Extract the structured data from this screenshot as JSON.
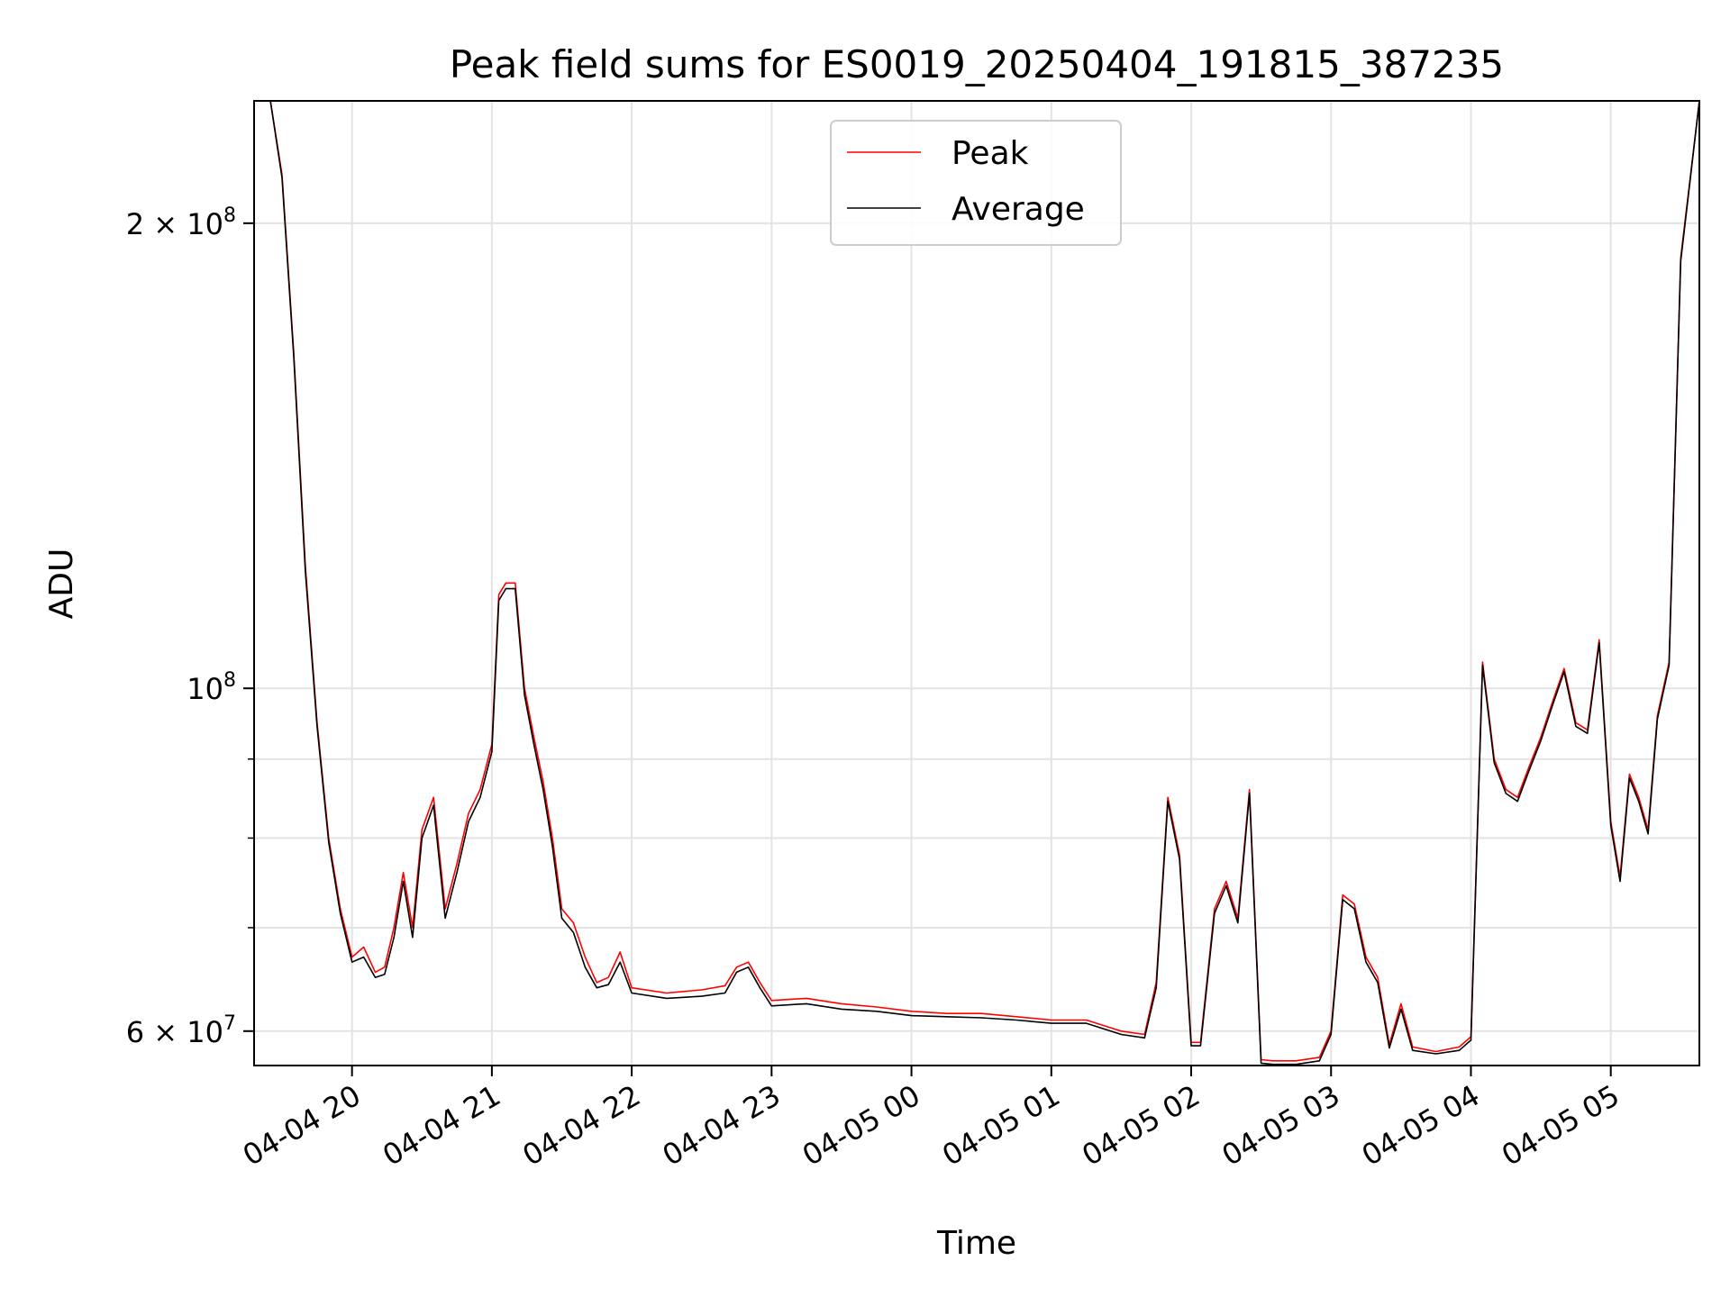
{
  "chart_data": {
    "type": "line",
    "title": "Peak field sums for ES0019_20250404_191815_387235",
    "xlabel": "Time",
    "ylabel": "ADU",
    "yscale": "log",
    "grid": true,
    "legend_position": "upper center",
    "xlim": [
      "2025-04-04 19:18",
      "2025-04-05 05:38"
    ],
    "ylim": [
      57000000,
      240000000
    ],
    "x_ticks": [
      {
        "value": "2025-04-04 20:00",
        "label": "04-04 20"
      },
      {
        "value": "2025-04-04 21:00",
        "label": "04-04 21"
      },
      {
        "value": "2025-04-04 22:00",
        "label": "04-04 22"
      },
      {
        "value": "2025-04-04 23:00",
        "label": "04-04 23"
      },
      {
        "value": "2025-04-05 00:00",
        "label": "04-05 00"
      },
      {
        "value": "2025-04-05 01:00",
        "label": "04-05 01"
      },
      {
        "value": "2025-04-05 02:00",
        "label": "04-05 02"
      },
      {
        "value": "2025-04-05 03:00",
        "label": "04-05 03"
      },
      {
        "value": "2025-04-05 04:00",
        "label": "04-05 04"
      },
      {
        "value": "2025-04-05 05:00",
        "label": "04-05 05"
      }
    ],
    "y_ticks": [
      {
        "value": 60000000,
        "base": "6 × 10",
        "exp": "7"
      },
      {
        "value": 100000000,
        "base": "10",
        "exp": "8"
      },
      {
        "value": 200000000,
        "base": "2 × 10",
        "exp": "8"
      }
    ],
    "y_minor_ticks": [
      70000000,
      80000000,
      90000000
    ],
    "series": [
      {
        "name": "Peak",
        "color": "#ff0000",
        "x": [
          "2025-04-04 19:18",
          "2025-04-04 19:25",
          "2025-04-04 19:30",
          "2025-04-04 19:35",
          "2025-04-04 19:40",
          "2025-04-04 19:45",
          "2025-04-04 19:50",
          "2025-04-04 19:55",
          "2025-04-04 20:00",
          "2025-04-04 20:05",
          "2025-04-04 20:10",
          "2025-04-04 20:14",
          "2025-04-04 20:18",
          "2025-04-04 20:22",
          "2025-04-04 20:26",
          "2025-04-04 20:30",
          "2025-04-04 20:35",
          "2025-04-04 20:40",
          "2025-04-04 20:45",
          "2025-04-04 20:50",
          "2025-04-04 20:55",
          "2025-04-04 21:00",
          "2025-04-04 21:03",
          "2025-04-04 21:06",
          "2025-04-04 21:10",
          "2025-04-04 21:14",
          "2025-04-04 21:18",
          "2025-04-04 21:22",
          "2025-04-04 21:26",
          "2025-04-04 21:30",
          "2025-04-04 21:35",
          "2025-04-04 21:40",
          "2025-04-04 21:45",
          "2025-04-04 21:50",
          "2025-04-04 21:55",
          "2025-04-04 22:00",
          "2025-04-04 22:15",
          "2025-04-04 22:30",
          "2025-04-04 22:40",
          "2025-04-04 22:45",
          "2025-04-04 22:50",
          "2025-04-04 22:55",
          "2025-04-04 23:00",
          "2025-04-04 23:15",
          "2025-04-04 23:30",
          "2025-04-04 23:45",
          "2025-04-05 00:00",
          "2025-04-05 00:15",
          "2025-04-05 00:30",
          "2025-04-05 00:45",
          "2025-04-05 01:00",
          "2025-04-05 01:15",
          "2025-04-05 01:30",
          "2025-04-05 01:40",
          "2025-04-05 01:45",
          "2025-04-05 01:50",
          "2025-04-05 01:55",
          "2025-04-05 02:00",
          "2025-04-05 02:04",
          "2025-04-05 02:10",
          "2025-04-05 02:15",
          "2025-04-05 02:20",
          "2025-04-05 02:25",
          "2025-04-05 02:30",
          "2025-04-05 02:35",
          "2025-04-05 02:45",
          "2025-04-05 02:55",
          "2025-04-05 03:00",
          "2025-04-05 03:05",
          "2025-04-05 03:10",
          "2025-04-05 03:15",
          "2025-04-05 03:20",
          "2025-04-05 03:25",
          "2025-04-05 03:30",
          "2025-04-05 03:35",
          "2025-04-05 03:45",
          "2025-04-05 03:55",
          "2025-04-05 04:00",
          "2025-04-05 04:05",
          "2025-04-05 04:10",
          "2025-04-05 04:15",
          "2025-04-05 04:20",
          "2025-04-05 04:25",
          "2025-04-05 04:30",
          "2025-04-05 04:35",
          "2025-04-05 04:40",
          "2025-04-05 04:45",
          "2025-04-05 04:50",
          "2025-04-05 04:55",
          "2025-04-05 05:00",
          "2025-04-05 05:04",
          "2025-04-05 05:08",
          "2025-04-05 05:12",
          "2025-04-05 05:16",
          "2025-04-05 05:20",
          "2025-04-05 05:25",
          "2025-04-05 05:30",
          "2025-04-05 05:38"
        ],
        "values": [
          240000000,
          240000000,
          215000000,
          165000000,
          120000000,
          95000000,
          80000000,
          72000000,
          67000000,
          68000000,
          65500000,
          66000000,
          70000000,
          76000000,
          70000000,
          81000000,
          85000000,
          72000000,
          77000000,
          83000000,
          86000000,
          92000000,
          115000000,
          117000000,
          117000000,
          100000000,
          93000000,
          87000000,
          80000000,
          72000000,
          70500000,
          67000000,
          64500000,
          65000000,
          67500000,
          64000000,
          63500000,
          63800000,
          64200000,
          66000000,
          66500000,
          64500000,
          62800000,
          63000000,
          62500000,
          62200000,
          61800000,
          61600000,
          61600000,
          61300000,
          61000000,
          61000000,
          60000000,
          59700000,
          64500000,
          85000000,
          78000000,
          59000000,
          59000000,
          72000000,
          75000000,
          71000000,
          86000000,
          57500000,
          57400000,
          57400000,
          57700000,
          60000000,
          73500000,
          72500000,
          67000000,
          65000000,
          58800000,
          62500000,
          58600000,
          58200000,
          58600000,
          59500000,
          104000000,
          90000000,
          86000000,
          85000000,
          89000000,
          93000000,
          98000000,
          103000000,
          95000000,
          94000000,
          107500000,
          82000000,
          75500000,
          88000000,
          85000000,
          81000000,
          96000000,
          104000000,
          190000000,
          240000000
        ]
      },
      {
        "name": "Average",
        "color": "#000000",
        "x": [
          "2025-04-04 19:18",
          "2025-04-04 19:25",
          "2025-04-04 19:30",
          "2025-04-04 19:35",
          "2025-04-04 19:40",
          "2025-04-04 19:45",
          "2025-04-04 19:50",
          "2025-04-04 19:55",
          "2025-04-04 20:00",
          "2025-04-04 20:05",
          "2025-04-04 20:10",
          "2025-04-04 20:14",
          "2025-04-04 20:18",
          "2025-04-04 20:22",
          "2025-04-04 20:26",
          "2025-04-04 20:30",
          "2025-04-04 20:35",
          "2025-04-04 20:40",
          "2025-04-04 20:45",
          "2025-04-04 20:50",
          "2025-04-04 20:55",
          "2025-04-04 21:00",
          "2025-04-04 21:03",
          "2025-04-04 21:06",
          "2025-04-04 21:10",
          "2025-04-04 21:14",
          "2025-04-04 21:18",
          "2025-04-04 21:22",
          "2025-04-04 21:26",
          "2025-04-04 21:30",
          "2025-04-04 21:35",
          "2025-04-04 21:40",
          "2025-04-04 21:45",
          "2025-04-04 21:50",
          "2025-04-04 21:55",
          "2025-04-04 22:00",
          "2025-04-04 22:15",
          "2025-04-04 22:30",
          "2025-04-04 22:40",
          "2025-04-04 22:45",
          "2025-04-04 22:50",
          "2025-04-04 22:55",
          "2025-04-04 23:00",
          "2025-04-04 23:15",
          "2025-04-04 23:30",
          "2025-04-04 23:45",
          "2025-04-05 00:00",
          "2025-04-05 00:15",
          "2025-04-05 00:30",
          "2025-04-05 00:45",
          "2025-04-05 01:00",
          "2025-04-05 01:15",
          "2025-04-05 01:30",
          "2025-04-05 01:40",
          "2025-04-05 01:45",
          "2025-04-05 01:50",
          "2025-04-05 01:55",
          "2025-04-05 02:00",
          "2025-04-05 02:04",
          "2025-04-05 02:10",
          "2025-04-05 02:15",
          "2025-04-05 02:20",
          "2025-04-05 02:25",
          "2025-04-05 02:30",
          "2025-04-05 02:35",
          "2025-04-05 02:45",
          "2025-04-05 02:55",
          "2025-04-05 03:00",
          "2025-04-05 03:05",
          "2025-04-05 03:10",
          "2025-04-05 03:15",
          "2025-04-05 03:20",
          "2025-04-05 03:25",
          "2025-04-05 03:30",
          "2025-04-05 03:35",
          "2025-04-05 03:45",
          "2025-04-05 03:55",
          "2025-04-05 04:00",
          "2025-04-05 04:05",
          "2025-04-05 04:10",
          "2025-04-05 04:15",
          "2025-04-05 04:20",
          "2025-04-05 04:25",
          "2025-04-05 04:30",
          "2025-04-05 04:35",
          "2025-04-05 04:40",
          "2025-04-05 04:45",
          "2025-04-05 04:50",
          "2025-04-05 04:55",
          "2025-04-05 05:00",
          "2025-04-05 05:04",
          "2025-04-05 05:08",
          "2025-04-05 05:12",
          "2025-04-05 05:16",
          "2025-04-05 05:20",
          "2025-04-05 05:25",
          "2025-04-05 05:30",
          "2025-04-05 05:38"
        ],
        "values": [
          240000000,
          240000000,
          214000000,
          164000000,
          119000000,
          94500000,
          79500000,
          71500000,
          66500000,
          67000000,
          65000000,
          65300000,
          69000000,
          75000000,
          69000000,
          80000000,
          84000000,
          71000000,
          76000000,
          82000000,
          85000000,
          91000000,
          114000000,
          116000000,
          116000000,
          99000000,
          92000000,
          86000000,
          79000000,
          71000000,
          69500000,
          66000000,
          64000000,
          64300000,
          66500000,
          63500000,
          63000000,
          63200000,
          63500000,
          65500000,
          66000000,
          64000000,
          62300000,
          62500000,
          62000000,
          61800000,
          61400000,
          61300000,
          61200000,
          61000000,
          60700000,
          60700000,
          59700000,
          59400000,
          64000000,
          84500000,
          77500000,
          58700000,
          58700000,
          71500000,
          74500000,
          70500000,
          85500000,
          57200000,
          57100000,
          57100000,
          57400000,
          59700000,
          73000000,
          72000000,
          66500000,
          64500000,
          58500000,
          62000000,
          58300000,
          58000000,
          58300000,
          59200000,
          103500000,
          89500000,
          85500000,
          84500000,
          88500000,
          92500000,
          97500000,
          102500000,
          94500000,
          93500000,
          107000000,
          81500000,
          75000000,
          87500000,
          84500000,
          80500000,
          95500000,
          103500000,
          189000000,
          240000000
        ]
      }
    ]
  }
}
